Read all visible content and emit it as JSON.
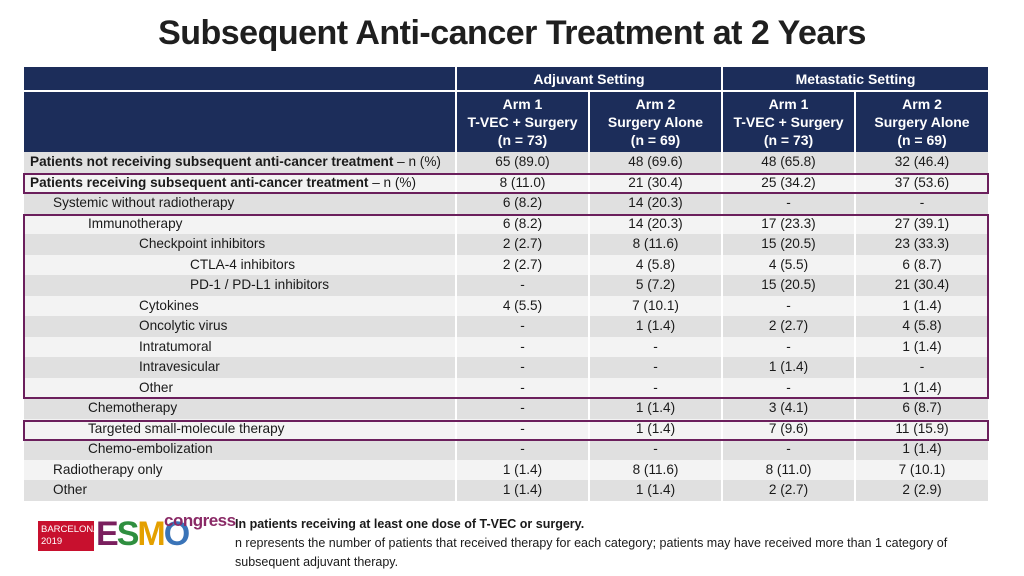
{
  "title": "Subsequent Anti-cancer Treatment at 2 Years",
  "colors": {
    "header_bg": "#1c2d5a",
    "highlight": "#6b1f5c",
    "row_dark": "#e0e0e0",
    "row_light": "#f3f3f3"
  },
  "header": {
    "groups": [
      "Adjuvant Setting",
      "Metastatic Setting"
    ],
    "arms": [
      {
        "l1": "Arm 1",
        "l2": "T-VEC + Surgery",
        "l3": "(n = 73)"
      },
      {
        "l1": "Arm 2",
        "l2": "Surgery Alone",
        "l3": "(n = 69)"
      },
      {
        "l1": "Arm 1",
        "l2": "T-VEC + Surgery",
        "l3": "(n = 73)"
      },
      {
        "l1": "Arm 2",
        "l2": "Surgery Alone",
        "l3": "(n = 69)"
      }
    ]
  },
  "rows": [
    {
      "bold": "Patients not receiving subsequent anti-cancer treatment",
      "suffix": " – n (%)",
      "values": [
        "65 (89.0)",
        "48 (69.6)",
        "48 (65.8)",
        "32 (46.4)"
      ]
    },
    {
      "bold": "Patients receiving subsequent anti-cancer treatment",
      "suffix": " – n (%)",
      "values": [
        "8 (11.0)",
        "21 (30.4)",
        "25 (34.2)",
        "37 (53.6)"
      ]
    },
    {
      "label": "Systemic without radiotherapy",
      "values": [
        "6 (8.2)",
        "14 (20.3)",
        "-",
        "-"
      ]
    },
    {
      "label": "Immunotherapy",
      "values": [
        "6 (8.2)",
        "14 (20.3)",
        "17 (23.3)",
        "27 (39.1)"
      ]
    },
    {
      "label": "Checkpoint inhibitors",
      "values": [
        "2 (2.7)",
        "8 (11.6)",
        "15 (20.5)",
        "23 (33.3)"
      ]
    },
    {
      "label": "CTLA-4 inhibitors",
      "values": [
        "2 (2.7)",
        "4 (5.8)",
        "4 (5.5)",
        "6 (8.7)"
      ]
    },
    {
      "label": "PD-1 / PD-L1 inhibitors",
      "values": [
        "-",
        "5 (7.2)",
        "15 (20.5)",
        "21 (30.4)"
      ]
    },
    {
      "label": "Cytokines",
      "values": [
        "4 (5.5)",
        "7 (10.1)",
        "-",
        "1 (1.4)"
      ]
    },
    {
      "label": "Oncolytic virus",
      "values": [
        "-",
        "1 (1.4)",
        "2 (2.7)",
        "4 (5.8)"
      ]
    },
    {
      "label": "Intratumoral",
      "values": [
        "-",
        "-",
        "-",
        "1 (1.4)"
      ]
    },
    {
      "label": "Intravesicular",
      "values": [
        "-",
        "-",
        "1 (1.4)",
        "-"
      ]
    },
    {
      "label": "Other",
      "values": [
        "-",
        "-",
        "-",
        "1 (1.4)"
      ]
    },
    {
      "label": "Chemotherapy",
      "values": [
        "-",
        "1 (1.4)",
        "3 (4.1)",
        "6 (8.7)"
      ]
    },
    {
      "label": "Targeted small-molecule therapy",
      "values": [
        "-",
        "1 (1.4)",
        "7 (9.6)",
        "11 (15.9)"
      ]
    },
    {
      "label": "Chemo-embolization",
      "values": [
        "-",
        "-",
        "-",
        "1 (1.4)"
      ]
    },
    {
      "label": "Radiotherapy only",
      "values": [
        "1 (1.4)",
        "8 (11.6)",
        "8 (11.0)",
        "7 (10.1)"
      ]
    },
    {
      "label": "Other",
      "values": [
        "1 (1.4)",
        "1 (1.4)",
        "2 (2.7)",
        "2 (2.9)"
      ]
    }
  ],
  "logo": {
    "city": "BARCELONA",
    "year": "2019",
    "brand_e": "E",
    "brand_s": "S",
    "brand_m": "M",
    "brand_o": "O",
    "suffix": "congress"
  },
  "notes": {
    "line1": "In patients receiving at least one dose of T-VEC or surgery.",
    "line2": "n represents the number of patients that received therapy for each category; patients may have received more than 1 category of subsequent adjuvant therapy."
  }
}
